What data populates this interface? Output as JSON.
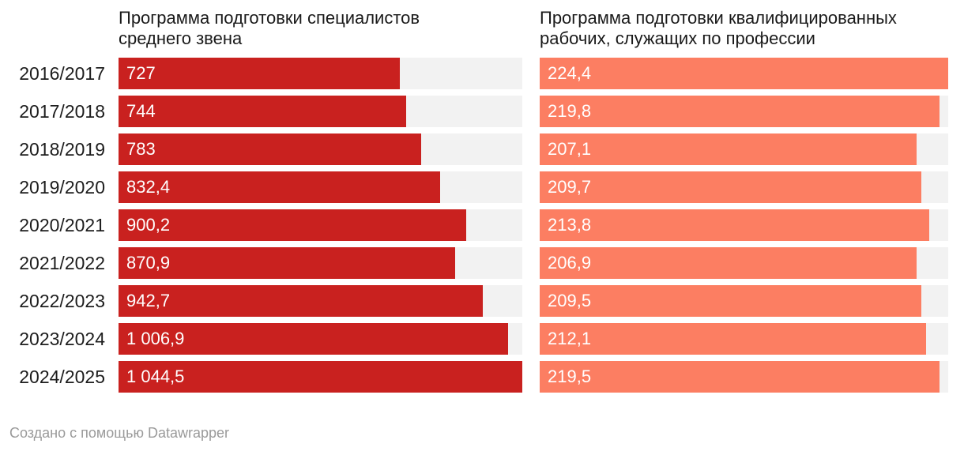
{
  "headers": {
    "left": "Программа подготовки специалистов среднего звена",
    "right": "Программа подготовки квалифицированных рабочих, служащих по профессии"
  },
  "footer": {
    "attribution": "Создано с помощью Datawrapper"
  },
  "colors": {
    "bar_left": "#c9211f",
    "bar_right": "#fc7e62",
    "track": "#f2f2f2",
    "text": "#1d1d1d",
    "value_label": "#ffffff",
    "attribution_text": "#9a9a9a"
  },
  "chart_data": {
    "type": "bar",
    "orientation": "horizontal",
    "grid": false,
    "legend_position": "column-headers",
    "categories": [
      "2016/2017",
      "2017/2018",
      "2018/2019",
      "2019/2020",
      "2020/2021",
      "2021/2022",
      "2022/2023",
      "2023/2024",
      "2024/2025"
    ],
    "series": [
      {
        "name": "Программа подготовки специалистов среднего звена",
        "color": "#c9211f",
        "values": [
          727,
          744,
          783,
          832.4,
          900.2,
          870.9,
          942.7,
          1006.9,
          1044.5
        ],
        "value_labels": [
          "727",
          "744",
          "783",
          "832,4",
          "900,2",
          "870,9",
          "942,7",
          "1 006,9",
          "1 044,5"
        ],
        "axis_max": 1044.5
      },
      {
        "name": "Программа подготовки квалифицированных рабочих, служащих по профессии",
        "color": "#fc7e62",
        "values": [
          224.4,
          219.8,
          207.1,
          209.7,
          213.8,
          206.9,
          209.5,
          212.1,
          219.5
        ],
        "value_labels": [
          "224,4",
          "219,8",
          "207,1",
          "209,7",
          "213,8",
          "206,9",
          "209,5",
          "212,1",
          "219,5"
        ],
        "axis_max": 224.4
      }
    ]
  }
}
